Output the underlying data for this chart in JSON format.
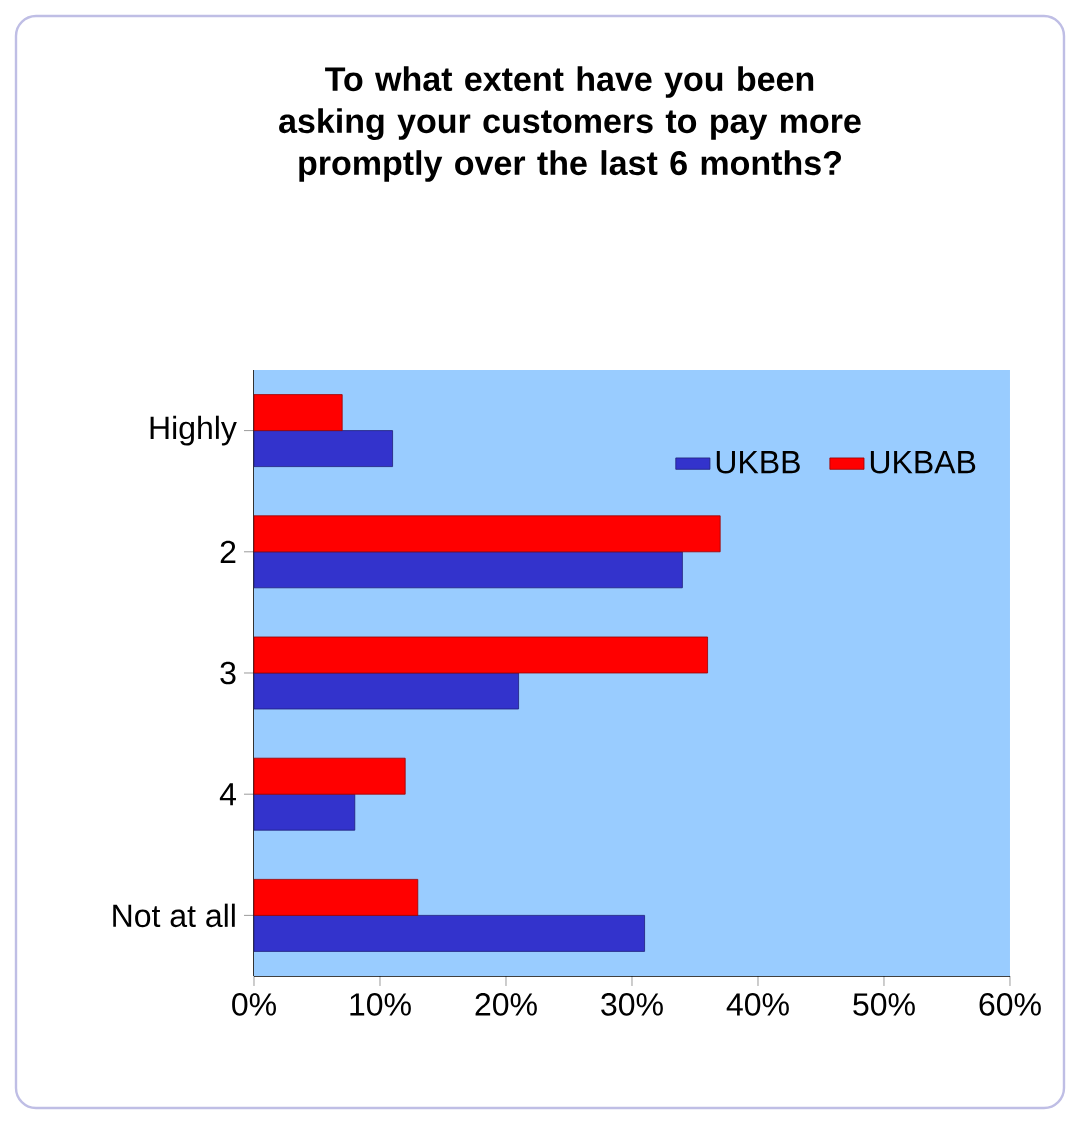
{
  "chart_data": {
    "type": "bar",
    "orientation": "horizontal",
    "title": "To what extent have you been asking your customers to pay more promptly over the last 6 months?",
    "categories": [
      "Highly",
      "2",
      "3",
      "4",
      "Not at all"
    ],
    "series": [
      {
        "name": "UKBB",
        "color": "#3333cc",
        "values": [
          11,
          34,
          21,
          8,
          31
        ]
      },
      {
        "name": "UKBAB",
        "color": "#ff0000",
        "values": [
          7,
          37,
          36,
          12,
          13
        ]
      }
    ],
    "xlim": [
      0,
      60
    ],
    "xticks": [
      {
        "value": 0,
        "label": "0%"
      },
      {
        "value": 10,
        "label": "10%"
      },
      {
        "value": 20,
        "label": "20%"
      },
      {
        "value": 30,
        "label": "30%"
      },
      {
        "value": 40,
        "label": "40%"
      },
      {
        "value": 50,
        "label": "50%"
      },
      {
        "value": 60,
        "label": "60%"
      }
    ],
    "grid": false,
    "legend": "top right"
  }
}
